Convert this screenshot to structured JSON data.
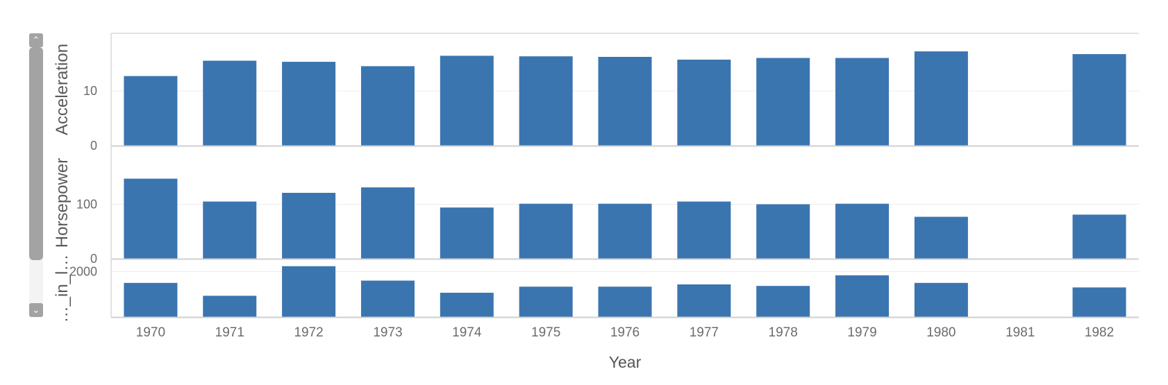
{
  "chart_data": {
    "type": "bar",
    "layout": "vertically stacked panels sharing x axis",
    "xlabel": "Year",
    "categories": [
      "1970",
      "1971",
      "1972",
      "1973",
      "1974",
      "1975",
      "1976",
      "1977",
      "1978",
      "1979",
      "1980",
      "1981",
      "1982"
    ],
    "bar_color": "#3a75b0",
    "grid": true,
    "panels": [
      {
        "ylabel": "Acceleration",
        "ylim": [
          0,
          20.5
        ],
        "yticks": [
          0,
          10
        ],
        "values": [
          12.7,
          15.5,
          15.3,
          14.5,
          16.4,
          16.3,
          16.2,
          15.7,
          16.0,
          16.0,
          17.2,
          null,
          16.7
        ]
      },
      {
        "ylabel": "Horsepower",
        "ylim": [
          0,
          205
        ],
        "yticks": [
          0,
          100
        ],
        "values": [
          147,
          105,
          121,
          131,
          94,
          101,
          101,
          105,
          100,
          101,
          77,
          null,
          81
        ]
      },
      {
        "ylabel": "…_in_l…",
        "ylim": [
          1400,
          2150
        ],
        "yticks": [
          2000
        ],
        "values": [
          1850,
          1680,
          2070,
          1880,
          1720,
          1800,
          1800,
          1830,
          1810,
          1950,
          1850,
          null,
          1790
        ]
      }
    ]
  }
}
